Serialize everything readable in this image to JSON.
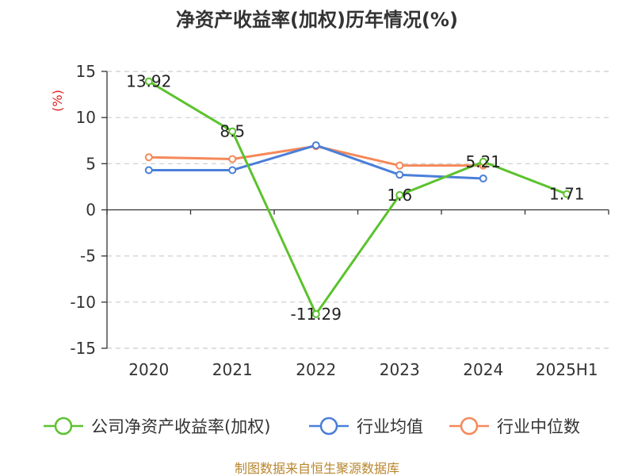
{
  "chart_data": {
    "type": "line",
    "title": "净资产收益率(加权)历年情况(%)",
    "ylabel": "(%)",
    "xlabel": "",
    "categories": [
      "2020",
      "2021",
      "2022",
      "2023",
      "2024",
      "2025H1"
    ],
    "ylim": [
      -15,
      15
    ],
    "yticks": [
      15,
      10,
      5,
      0,
      -5,
      -10,
      -15
    ],
    "grid": true,
    "legend_position": "bottom",
    "series": [
      {
        "name": "公司净资产收益率(加权)",
        "color": "#5cc22e",
        "values": [
          13.92,
          8.5,
          -11.29,
          1.6,
          5.21,
          1.71
        ],
        "labels": [
          "13.92",
          "8.5",
          "-11.29",
          "1.6",
          "5.21",
          "1.71"
        ]
      },
      {
        "name": "行业均值",
        "color": "#4a7fd8",
        "values": [
          4.3,
          4.3,
          7.0,
          3.8,
          3.4,
          null
        ]
      },
      {
        "name": "行业中位数",
        "color": "#f5895a",
        "values": [
          5.7,
          5.5,
          6.9,
          4.8,
          4.8,
          null
        ]
      }
    ]
  },
  "source": "制图数据来自恒生聚源数据库"
}
